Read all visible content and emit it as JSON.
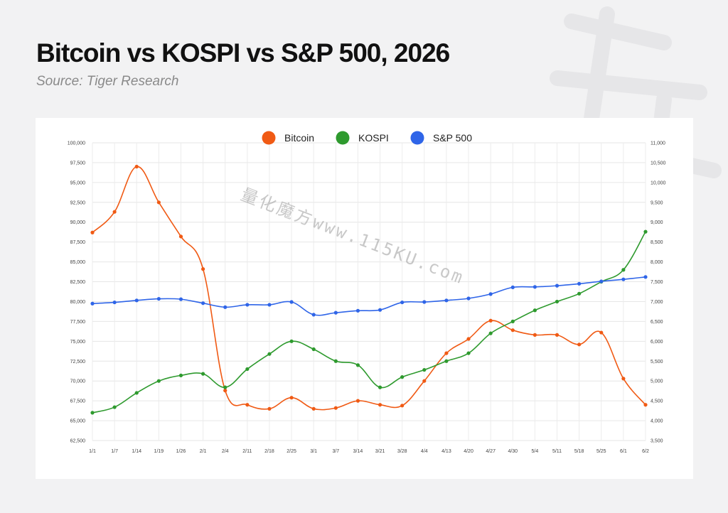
{
  "header": {
    "title": "Bitcoin vs KOSPI vs S&P 500, 2026",
    "subtitle": "Source: Tiger Research"
  },
  "watermark": "量化魔方www.115KU.com",
  "chart_data": {
    "type": "line",
    "categories": [
      "1/1",
      "1/7",
      "1/14",
      "1/19",
      "1/26",
      "2/1",
      "2/4",
      "2/11",
      "2/18",
      "2/25",
      "3/1",
      "3/7",
      "3/14",
      "3/21",
      "3/28",
      "4/4",
      "4/13",
      "4/20",
      "4/27",
      "4/30",
      "5/4",
      "5/11",
      "5/18",
      "5/25",
      "6/1",
      "6/2"
    ],
    "left_axis": {
      "min": 62500,
      "max": 100000,
      "step": 2500,
      "ticks": [
        "62,500",
        "65,000",
        "67,500",
        "70,000",
        "72,500",
        "75,000",
        "77,500",
        "80,000",
        "82,500",
        "85,000",
        "87,500",
        "90,000",
        "92,500",
        "95,000",
        "97,500",
        "100,000"
      ]
    },
    "right_axis": {
      "min": 3500,
      "max": 11000,
      "step": 500,
      "ticks": [
        "3,500",
        "4,000",
        "4,500",
        "5,000",
        "5,500",
        "6,000",
        "6,500",
        "7,000",
        "7,500",
        "8,000",
        "8,500",
        "9,000",
        "9,500",
        "10,000",
        "10,500",
        "11,000"
      ]
    },
    "series": [
      {
        "name": "Bitcoin",
        "axis": "left",
        "color": "#f05a14",
        "values": [
          88700,
          91300,
          97000,
          92500,
          88200,
          84100,
          68800,
          67000,
          66500,
          67900,
          66500,
          66600,
          67500,
          67000,
          66900,
          70000,
          73500,
          75300,
          77600,
          76400,
          75800,
          75800,
          74600,
          76100,
          70300,
          67000
        ]
      },
      {
        "name": "KOSPI",
        "axis": "left",
        "color": "#2e9a2e",
        "values": [
          66000,
          66700,
          68500,
          70000,
          70700,
          70900,
          69200,
          71500,
          73400,
          75000,
          74000,
          72500,
          72000,
          69200,
          70500,
          71400,
          72500,
          73500,
          76000,
          77500,
          78900,
          80000,
          81000,
          82500,
          84000,
          88800
        ]
      },
      {
        "name": "S&P 500",
        "axis": "right",
        "color": "#2f65e8",
        "values": [
          6950,
          6980,
          7030,
          7070,
          7060,
          6960,
          6860,
          6920,
          6920,
          6990,
          6670,
          6720,
          6770,
          6790,
          6980,
          6990,
          7030,
          7080,
          7190,
          7360,
          7370,
          7400,
          7450,
          7510,
          7560,
          7620
        ]
      }
    ],
    "legend_position": "top-center",
    "grid": true
  }
}
